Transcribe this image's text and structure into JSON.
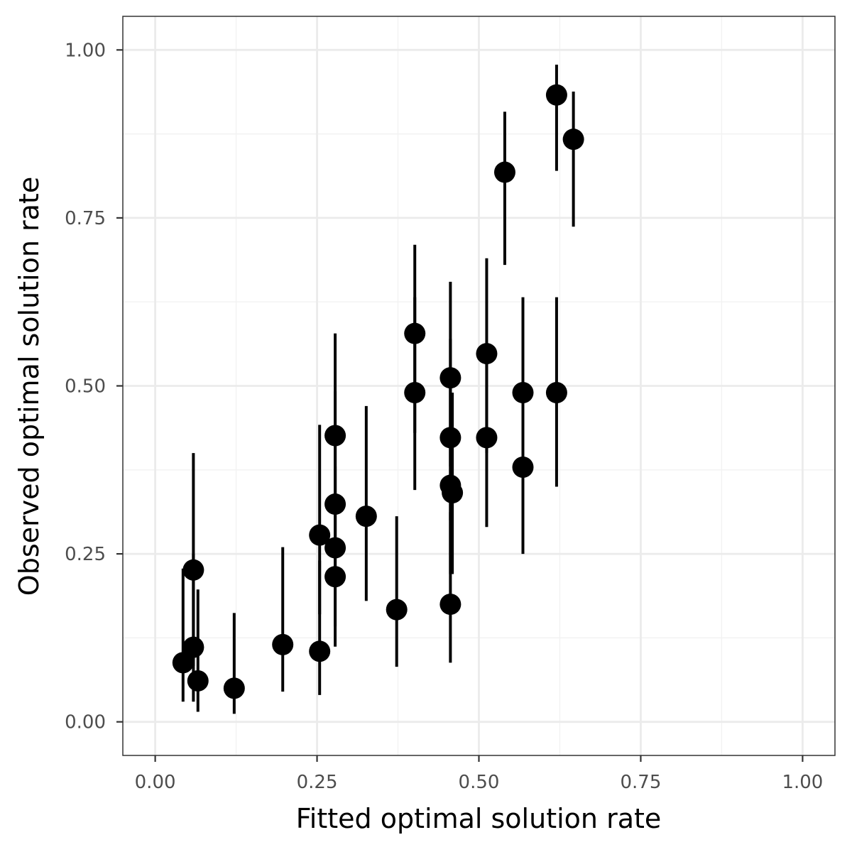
{
  "chart_data": {
    "type": "scatter",
    "title": "",
    "xlabel": "Fitted optimal solution rate",
    "ylabel": "Observed optimal solution rate",
    "xlim": [
      -0.05,
      1.05
    ],
    "ylim": [
      -0.05,
      1.05
    ],
    "x_ticks": [
      0.0,
      0.25,
      0.5,
      0.75,
      1.0
    ],
    "y_ticks": [
      0.0,
      0.25,
      0.5,
      0.75,
      1.0
    ],
    "x_tick_labels": [
      "0.00",
      "0.25",
      "0.50",
      "0.75",
      "1.00"
    ],
    "y_tick_labels": [
      "0.00",
      "0.25",
      "0.50",
      "0.75",
      "1.00"
    ],
    "grid": true,
    "colors": {
      "point": "#000000",
      "panel_border": "#333333",
      "grid_major": "#ebebeb",
      "grid_minor": "#f2f2f2",
      "tick_text": "#4d4d4d"
    },
    "points": [
      {
        "x": 0.043,
        "y": 0.088,
        "lo": 0.03,
        "hi": 0.228
      },
      {
        "x": 0.059,
        "y": 0.226,
        "lo": 0.083,
        "hi": 0.4
      },
      {
        "x": 0.059,
        "y": 0.111,
        "lo": 0.03,
        "hi": 0.25
      },
      {
        "x": 0.066,
        "y": 0.061,
        "lo": 0.015,
        "hi": 0.197
      },
      {
        "x": 0.122,
        "y": 0.05,
        "lo": 0.012,
        "hi": 0.162
      },
      {
        "x": 0.197,
        "y": 0.115,
        "lo": 0.045,
        "hi": 0.26
      },
      {
        "x": 0.254,
        "y": 0.105,
        "lo": 0.04,
        "hi": 0.24
      },
      {
        "x": 0.254,
        "y": 0.278,
        "lo": 0.16,
        "hi": 0.442
      },
      {
        "x": 0.278,
        "y": 0.426,
        "lo": 0.27,
        "hi": 0.578
      },
      {
        "x": 0.278,
        "y": 0.324,
        "lo": 0.2,
        "hi": 0.492
      },
      {
        "x": 0.278,
        "y": 0.259,
        "lo": 0.142,
        "hi": 0.42
      },
      {
        "x": 0.278,
        "y": 0.216,
        "lo": 0.112,
        "hi": 0.38
      },
      {
        "x": 0.326,
        "y": 0.306,
        "lo": 0.18,
        "hi": 0.47
      },
      {
        "x": 0.373,
        "y": 0.167,
        "lo": 0.082,
        "hi": 0.306
      },
      {
        "x": 0.401,
        "y": 0.578,
        "lo": 0.43,
        "hi": 0.71
      },
      {
        "x": 0.401,
        "y": 0.49,
        "lo": 0.345,
        "hi": 0.632
      },
      {
        "x": 0.456,
        "y": 0.512,
        "lo": 0.38,
        "hi": 0.655
      },
      {
        "x": 0.456,
        "y": 0.423,
        "lo": 0.3,
        "hi": 0.57
      },
      {
        "x": 0.456,
        "y": 0.352,
        "lo": 0.22,
        "hi": 0.5
      },
      {
        "x": 0.459,
        "y": 0.341,
        "lo": 0.22,
        "hi": 0.49
      },
      {
        "x": 0.456,
        "y": 0.175,
        "lo": 0.088,
        "hi": 0.312
      },
      {
        "x": 0.512,
        "y": 0.548,
        "lo": 0.4,
        "hi": 0.69
      },
      {
        "x": 0.512,
        "y": 0.423,
        "lo": 0.29,
        "hi": 0.56
      },
      {
        "x": 0.54,
        "y": 0.818,
        "lo": 0.68,
        "hi": 0.908
      },
      {
        "x": 0.568,
        "y": 0.49,
        "lo": 0.355,
        "hi": 0.632
      },
      {
        "x": 0.568,
        "y": 0.379,
        "lo": 0.25,
        "hi": 0.525
      },
      {
        "x": 0.62,
        "y": 0.933,
        "lo": 0.82,
        "hi": 0.978
      },
      {
        "x": 0.62,
        "y": 0.49,
        "lo": 0.35,
        "hi": 0.632
      },
      {
        "x": 0.646,
        "y": 0.867,
        "lo": 0.737,
        "hi": 0.938
      }
    ]
  }
}
